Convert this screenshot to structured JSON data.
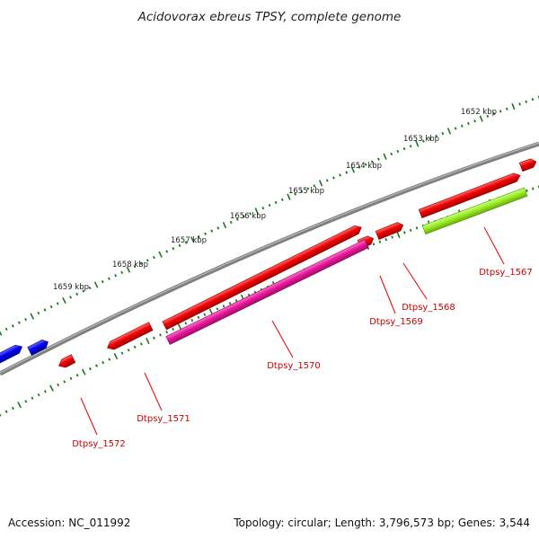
{
  "title": "Acidovorax ebreus TPSY, complete genome",
  "footer": {
    "accession": "Accession: NC_011992",
    "summary": "Topology: circular; Length: 3,796,573 bp; Genes: 3,544"
  },
  "ruler_labels": [
    "1652 kbp",
    "1653 kbp",
    "1654 kbp",
    "1655 kbp",
    "1656 kbp",
    "1657 kbp",
    "1658 kbp",
    "1659 kbp"
  ],
  "gene_labels": [
    "Dtpsy_1567",
    "Dtpsy_1568",
    "Dtpsy_1569",
    "Dtpsy_1570",
    "Dtpsy_1571",
    "Dtpsy_1572"
  ],
  "colors": {
    "backbone": "#808080",
    "tick": "#1a7a1a",
    "gene_red": "#ee0000",
    "gene_blue": "#0000ee",
    "gene_magenta": "#e6189a",
    "gene_green": "#99ee22",
    "label_red": "#cc0000"
  }
}
